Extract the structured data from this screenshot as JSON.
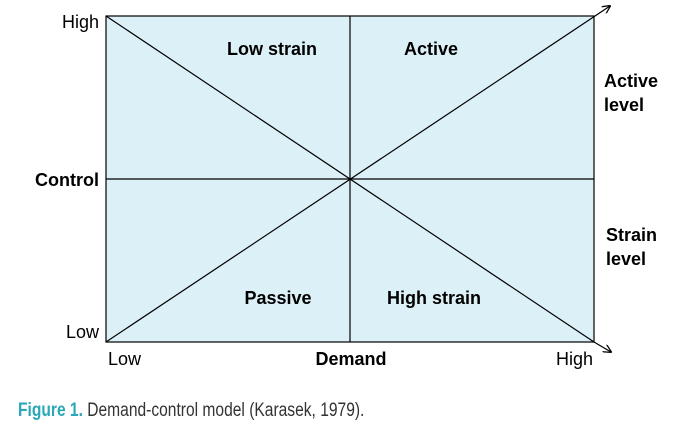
{
  "diagram": {
    "quadrants": {
      "top_left": "Low strain",
      "top_right": "Active",
      "bottom_left": "Passive",
      "bottom_right": "High strain"
    },
    "y_axis": {
      "title": "Control",
      "high": "High",
      "low": "Low"
    },
    "x_axis": {
      "title": "Demand",
      "low": "Low",
      "high": "High"
    },
    "diagonals": {
      "active_level": "Active level",
      "strain_level": "Strain level"
    },
    "colors": {
      "fill": "#dcf0f7",
      "stroke": "#000000"
    }
  },
  "caption": {
    "figure_label": "Figure 1.",
    "text": "Demand-control model (Karasek, 1979)."
  }
}
